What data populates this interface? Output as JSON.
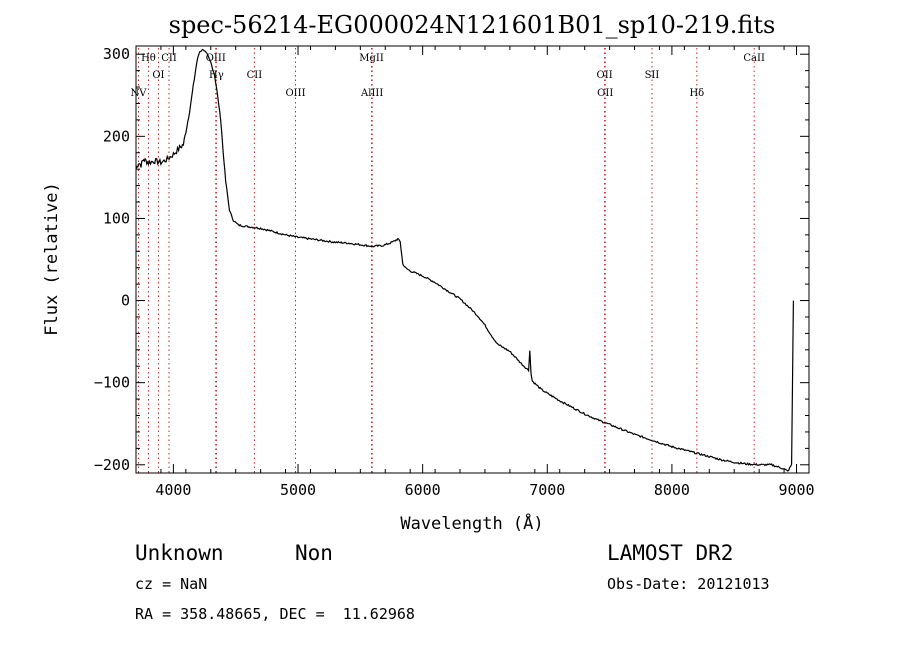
{
  "chart_data": {
    "type": "line",
    "title": "spec-56214-EG000024N121601B01_sp10-219.fits",
    "xlabel": "Wavelength (Å)",
    "ylabel": "Flux (relative)",
    "xlim": [
      3700,
      9100
    ],
    "ylim": [
      -210,
      310
    ],
    "x_ticks": [
      4000,
      5000,
      6000,
      7000,
      8000,
      9000
    ],
    "y_ticks": [
      -200,
      -100,
      0,
      100,
      200,
      300
    ],
    "grid": false,
    "series": [
      {
        "values": [
          [
            3700,
            160
          ],
          [
            3720,
            168
          ],
          [
            3740,
            165
          ],
          [
            3760,
            172
          ],
          [
            3780,
            170
          ],
          [
            3800,
            168
          ],
          [
            3850,
            170
          ],
          [
            3900,
            168
          ],
          [
            3950,
            172
          ],
          [
            4000,
            178
          ],
          [
            4050,
            186
          ],
          [
            4080,
            190
          ],
          [
            4100,
            205
          ],
          [
            4130,
            230
          ],
          [
            4160,
            262
          ],
          [
            4190,
            292
          ],
          [
            4210,
            303
          ],
          [
            4240,
            306
          ],
          [
            4270,
            300
          ],
          [
            4300,
            290
          ],
          [
            4330,
            275
          ],
          [
            4350,
            255
          ],
          [
            4380,
            220
          ],
          [
            4400,
            180
          ],
          [
            4420,
            145
          ],
          [
            4450,
            110
          ],
          [
            4480,
            98
          ],
          [
            4520,
            92
          ],
          [
            4600,
            90
          ],
          [
            4700,
            88
          ],
          [
            4800,
            84
          ],
          [
            4900,
            80
          ],
          [
            5000,
            77
          ],
          [
            5100,
            75
          ],
          [
            5200,
            73
          ],
          [
            5300,
            71
          ],
          [
            5400,
            70
          ],
          [
            5500,
            68
          ],
          [
            5600,
            66
          ],
          [
            5680,
            67
          ],
          [
            5740,
            70
          ],
          [
            5780,
            73
          ],
          [
            5800,
            75
          ],
          [
            5820,
            72
          ],
          [
            5840,
            45
          ],
          [
            5860,
            40
          ],
          [
            5900,
            36
          ],
          [
            6000,
            30
          ],
          [
            6100,
            22
          ],
          [
            6200,
            12
          ],
          [
            6300,
            2
          ],
          [
            6350,
            -5
          ],
          [
            6400,
            -12
          ],
          [
            6450,
            -20
          ],
          [
            6500,
            -30
          ],
          [
            6550,
            -42
          ],
          [
            6600,
            -53
          ],
          [
            6700,
            -62
          ],
          [
            6800,
            -78
          ],
          [
            6850,
            -85
          ],
          [
            6860,
            -60
          ],
          [
            6870,
            -90
          ],
          [
            6880,
            -98
          ],
          [
            6950,
            -108
          ],
          [
            7000,
            -113
          ],
          [
            7100,
            -122
          ],
          [
            7200,
            -130
          ],
          [
            7300,
            -138
          ],
          [
            7400,
            -145
          ],
          [
            7500,
            -151
          ],
          [
            7600,
            -157
          ],
          [
            7700,
            -163
          ],
          [
            7800,
            -168
          ],
          [
            7900,
            -173
          ],
          [
            8000,
            -178
          ],
          [
            8100,
            -182
          ],
          [
            8200,
            -186
          ],
          [
            8300,
            -190
          ],
          [
            8400,
            -194
          ],
          [
            8500,
            -197
          ],
          [
            8600,
            -199
          ],
          [
            8700,
            -200
          ],
          [
            8800,
            -200
          ],
          [
            8860,
            -203
          ],
          [
            8900,
            -205
          ],
          [
            8930,
            -208
          ],
          [
            8960,
            -200
          ],
          [
            8975,
            0
          ]
        ]
      }
    ],
    "lines": [
      {
        "label": "NV",
        "x": 3720,
        "row": 2
      },
      {
        "label": "Hθ",
        "x": 3800,
        "row": 0
      },
      {
        "label": "OI",
        "x": 3880,
        "row": 1
      },
      {
        "label": "CII",
        "x": 3965,
        "row": 0
      },
      {
        "label": "OIII",
        "x": 4340,
        "row": 0
      },
      {
        "label": "Hγ",
        "x": 4345,
        "row": 1
      },
      {
        "label": "CII",
        "x": 4650,
        "row": 1
      },
      {
        "label": "OIII",
        "x": 4980,
        "row": 2
      },
      {
        "label": "MgII",
        "x": 5590,
        "row": 0
      },
      {
        "label": "AlIII",
        "x": 5595,
        "row": 2
      },
      {
        "label": "OII",
        "x": 7460,
        "row": 1
      },
      {
        "label": "OII",
        "x": 7465,
        "row": 2
      },
      {
        "label": "SII",
        "x": 7840,
        "row": 1
      },
      {
        "label": "Hδ",
        "x": 8200,
        "row": 2
      },
      {
        "label": "CaII",
        "x": 8660,
        "row": 0
      }
    ]
  },
  "info": {
    "class": "Unknown",
    "subclass": "Non",
    "cz": "cz = NaN",
    "radec": "RA = 358.48665, DEC =  11.62968",
    "survey": "LAMOST DR2",
    "obs_date": "Obs-Date: 20121013"
  }
}
